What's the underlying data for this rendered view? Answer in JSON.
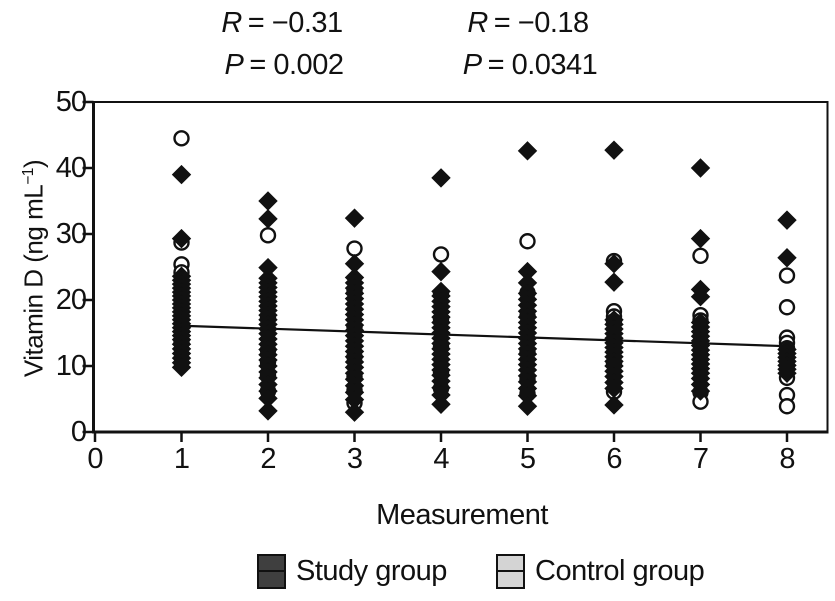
{
  "chart_data": {
    "type": "scatter",
    "xlabel": "Measurement",
    "ylabel": {
      "prefix": "Vitamin D (ng mL",
      "superscript": "−1",
      "suffix": ")"
    },
    "xlim": [
      0,
      8.5
    ],
    "ylim": [
      0,
      50
    ],
    "x_ticks": [
      0,
      1,
      2,
      3,
      4,
      5,
      6,
      7,
      8
    ],
    "y_ticks": [
      0,
      10,
      20,
      30,
      40,
      50
    ],
    "grid": false,
    "annotations": [
      {
        "variable": "R",
        "text": "= −0.31"
      },
      {
        "variable": "P",
        "text": "= 0.002"
      },
      {
        "variable": "R",
        "text": "= −0.18"
      },
      {
        "variable": "P",
        "text": "= 0.0341"
      }
    ],
    "trend_line": {
      "from": [
        1,
        16.1
      ],
      "to": [
        8,
        13.0
      ],
      "color": "#111111"
    },
    "series": [
      {
        "name": "Study group",
        "marker": "filled-diamond",
        "color": "#111111",
        "legend_swatch": "#3f3f3f",
        "points": [
          [
            1,
            39
          ],
          [
            1,
            29.3
          ],
          [
            1,
            23.6
          ],
          [
            1,
            23
          ],
          [
            1,
            22.4
          ],
          [
            1,
            21.8
          ],
          [
            1,
            21.2
          ],
          [
            1,
            20.6
          ],
          [
            1,
            20
          ],
          [
            1,
            19.4
          ],
          [
            1,
            18.8
          ],
          [
            1,
            18.2
          ],
          [
            1,
            17.6
          ],
          [
            1,
            17
          ],
          [
            1,
            16.4
          ],
          [
            1,
            15.8
          ],
          [
            1,
            15.2
          ],
          [
            1,
            14.6
          ],
          [
            1,
            14
          ],
          [
            1,
            13.3
          ],
          [
            1,
            12.6
          ],
          [
            1,
            11.9
          ],
          [
            1,
            11.2
          ],
          [
            1,
            10.5
          ],
          [
            1,
            9.8
          ],
          [
            2,
            35
          ],
          [
            2,
            32.3
          ],
          [
            2,
            24.9
          ],
          [
            2,
            23.3
          ],
          [
            2,
            22.6
          ],
          [
            2,
            21.9
          ],
          [
            2,
            21.2
          ],
          [
            2,
            20.5
          ],
          [
            2,
            19.8
          ],
          [
            2,
            19.1
          ],
          [
            2,
            18.4
          ],
          [
            2,
            17.7
          ],
          [
            2,
            17
          ],
          [
            2,
            16.3
          ],
          [
            2,
            15.6
          ],
          [
            2,
            14.9
          ],
          [
            2,
            14.1
          ],
          [
            2,
            13.3
          ],
          [
            2,
            12.5
          ],
          [
            2,
            11.7
          ],
          [
            2,
            10.9
          ],
          [
            2,
            10
          ],
          [
            2,
            9.1
          ],
          [
            2,
            8.2
          ],
          [
            2,
            7.2
          ],
          [
            2,
            6.2
          ],
          [
            2,
            5.1
          ],
          [
            2,
            3.2
          ],
          [
            3,
            32.4
          ],
          [
            3,
            25.5
          ],
          [
            3,
            23.4
          ],
          [
            3,
            22.6
          ],
          [
            3,
            21.8
          ],
          [
            3,
            21
          ],
          [
            3,
            20.2
          ],
          [
            3,
            19.4
          ],
          [
            3,
            18.6
          ],
          [
            3,
            17.8
          ],
          [
            3,
            17
          ],
          [
            3,
            16.2
          ],
          [
            3,
            15.4
          ],
          [
            3,
            14.6
          ],
          [
            3,
            13.8
          ],
          [
            3,
            13
          ],
          [
            3,
            12.2
          ],
          [
            3,
            11.4
          ],
          [
            3,
            10.6
          ],
          [
            3,
            9.8
          ],
          [
            3,
            8.9
          ],
          [
            3,
            8
          ],
          [
            3,
            7
          ],
          [
            3,
            6
          ],
          [
            3,
            4.9
          ],
          [
            3,
            3
          ],
          [
            4,
            38.5
          ],
          [
            4,
            24.3
          ],
          [
            4,
            21.3
          ],
          [
            4,
            20.6
          ],
          [
            4,
            19.8
          ],
          [
            4,
            19
          ],
          [
            4,
            18.2
          ],
          [
            4,
            17.4
          ],
          [
            4,
            16.6
          ],
          [
            4,
            15.8
          ],
          [
            4,
            15
          ],
          [
            4,
            14.2
          ],
          [
            4,
            13.4
          ],
          [
            4,
            12.6
          ],
          [
            4,
            11.8
          ],
          [
            4,
            11
          ],
          [
            4,
            10.2
          ],
          [
            4,
            9.4
          ],
          [
            4,
            8.6
          ],
          [
            4,
            7.7
          ],
          [
            4,
            6.7
          ],
          [
            4,
            5.6
          ],
          [
            4,
            4.2
          ],
          [
            5,
            42.6
          ],
          [
            5,
            24.3
          ],
          [
            5,
            22.6
          ],
          [
            5,
            21
          ],
          [
            5,
            20.1
          ],
          [
            5,
            19.2
          ],
          [
            5,
            18.3
          ],
          [
            5,
            17.4
          ],
          [
            5,
            16.6
          ],
          [
            5,
            15.8
          ],
          [
            5,
            15
          ],
          [
            5,
            14.2
          ],
          [
            5,
            13.4
          ],
          [
            5,
            12.6
          ],
          [
            5,
            11.8
          ],
          [
            5,
            11
          ],
          [
            5,
            10.2
          ],
          [
            5,
            9.4
          ],
          [
            5,
            8.5
          ],
          [
            5,
            7.6
          ],
          [
            5,
            6.6
          ],
          [
            5,
            5.5
          ],
          [
            5,
            3.9
          ],
          [
            6,
            42.7
          ],
          [
            6,
            25.5
          ],
          [
            6,
            22.7
          ],
          [
            6,
            17
          ],
          [
            6,
            16.3
          ],
          [
            6,
            15.6
          ],
          [
            6,
            14.9
          ],
          [
            6,
            14.2
          ],
          [
            6,
            13.5
          ],
          [
            6,
            12.8
          ],
          [
            6,
            12.1
          ],
          [
            6,
            11.4
          ],
          [
            6,
            10.7
          ],
          [
            6,
            10
          ],
          [
            6,
            9.2
          ],
          [
            6,
            8.4
          ],
          [
            6,
            7.5
          ],
          [
            6,
            6.6
          ],
          [
            6,
            4.1
          ],
          [
            7,
            40
          ],
          [
            7,
            29.3
          ],
          [
            7,
            21.6
          ],
          [
            7,
            20.5
          ],
          [
            7,
            16.6
          ],
          [
            7,
            15.9
          ],
          [
            7,
            15.2
          ],
          [
            7,
            14.5
          ],
          [
            7,
            13.8
          ],
          [
            7,
            13.1
          ],
          [
            7,
            12.4
          ],
          [
            7,
            11.7
          ],
          [
            7,
            11
          ],
          [
            7,
            10.3
          ],
          [
            7,
            9.6
          ],
          [
            7,
            8.9
          ],
          [
            7,
            8.1
          ],
          [
            7,
            7.2
          ],
          [
            7,
            6.2
          ],
          [
            8,
            32.1
          ],
          [
            8,
            26.4
          ],
          [
            8,
            12.5
          ],
          [
            8,
            11.9
          ],
          [
            8,
            11.3
          ],
          [
            8,
            10.7
          ],
          [
            8,
            10.1
          ],
          [
            8,
            9.5
          ],
          [
            8,
            8.9
          ]
        ]
      },
      {
        "name": "Control group",
        "marker": "open-circle",
        "color": "#111111",
        "legend_swatch": "#d4d4d4",
        "points": [
          [
            1,
            44.5
          ],
          [
            1,
            28.7
          ],
          [
            1,
            25.4
          ],
          [
            1,
            24.2
          ],
          [
            1,
            21
          ],
          [
            1,
            13.6
          ],
          [
            2,
            29.8
          ],
          [
            2,
            17.2
          ],
          [
            2,
            12.4
          ],
          [
            2,
            10.6
          ],
          [
            2,
            8.6
          ],
          [
            2,
            6.2
          ],
          [
            3,
            27.8
          ],
          [
            3,
            21.4
          ],
          [
            3,
            15.9
          ],
          [
            3,
            11.4
          ],
          [
            3,
            8.4
          ],
          [
            3,
            6.3
          ],
          [
            3,
            4.4
          ],
          [
            4,
            26.9
          ],
          [
            4,
            20.9
          ],
          [
            4,
            17.1
          ],
          [
            4,
            12.9
          ],
          [
            4,
            9
          ],
          [
            4,
            6.6
          ],
          [
            5,
            28.9
          ],
          [
            5,
            21.1
          ],
          [
            5,
            17.6
          ],
          [
            5,
            12.1
          ],
          [
            5,
            8
          ],
          [
            5,
            5.8
          ],
          [
            6,
            25.9
          ],
          [
            6,
            18.3
          ],
          [
            6,
            17.5
          ],
          [
            6,
            16.8
          ],
          [
            6,
            10.4
          ],
          [
            6,
            6.1
          ],
          [
            7,
            26.7
          ],
          [
            7,
            17.7
          ],
          [
            7,
            16.9
          ],
          [
            7,
            6
          ],
          [
            7,
            4.6
          ],
          [
            8,
            23.7
          ],
          [
            8,
            18.9
          ],
          [
            8,
            14.3
          ],
          [
            8,
            13.5
          ],
          [
            8,
            12.7
          ],
          [
            8,
            8.2
          ],
          [
            8,
            5.6
          ],
          [
            8,
            3.9
          ]
        ]
      }
    ]
  }
}
